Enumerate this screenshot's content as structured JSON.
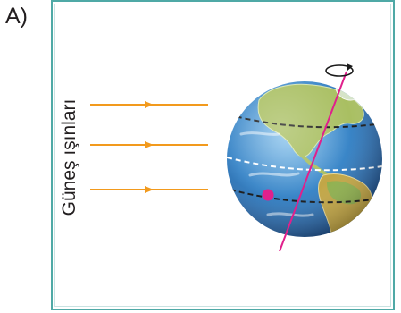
{
  "option_label": "A)",
  "rays_label": "Güneş ışınları",
  "icons": [
    "sun-ray-arrow",
    "earth-globe",
    "rotation-direction-arrow",
    "location-dot"
  ],
  "colors": {
    "panel_border": "#4fa9a6",
    "ray": "#f29a1d",
    "axis": "#e0208c",
    "dot": "#e0208c",
    "ocean": "#2f7fc1",
    "land": "#9cb45a",
    "text": "#231f20"
  }
}
